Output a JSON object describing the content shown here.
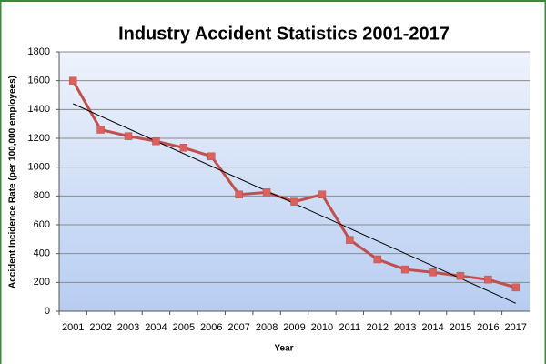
{
  "chart_data": {
    "type": "line",
    "title": "Industry Accident Statistics 2001-2017",
    "x_label": "Year",
    "y_label": "Accident Incidence Rate (per 100,000 employees)",
    "categories": [
      "2001",
      "2002",
      "2003",
      "2004",
      "2005",
      "2006",
      "2007",
      "2008",
      "2009",
      "2010",
      "2011",
      "2012",
      "2013",
      "2014",
      "2015",
      "2016",
      "2017"
    ],
    "values": [
      1600,
      1260,
      1215,
      1180,
      1135,
      1075,
      810,
      825,
      760,
      810,
      495,
      360,
      290,
      270,
      245,
      220,
      165
    ],
    "color": "#c0504d",
    "marker_color": "#d9625e",
    "trendline": {
      "values": [
        1440,
        55
      ],
      "color": "#000000"
    },
    "ylim": [
      0,
      1800
    ],
    "yticks": [
      0,
      200,
      400,
      600,
      800,
      1000,
      1200,
      1400,
      1600,
      1800
    ],
    "grid": true
  }
}
